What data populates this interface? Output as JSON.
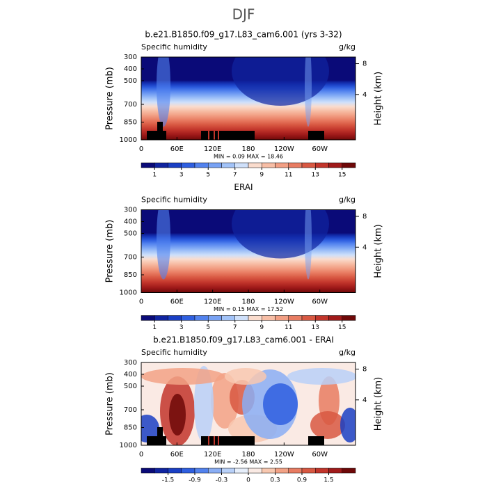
{
  "title": "DJF",
  "chart_data": [
    {
      "type": "contour",
      "title": "b.e21.B1850.f09_g17.L83_cam6.001 (yrs 3-32)",
      "variable": "Specific humidity",
      "units": "g/kg",
      "ylabel": "Pressure (mb)",
      "y2label": "Height (km)",
      "xlim": [
        0,
        360
      ],
      "xticks": [
        0,
        {
          "value": 60,
          "label": "60E"
        },
        {
          "value": 120,
          "label": "120E"
        },
        180,
        {
          "value": 240,
          "label": "120W"
        },
        {
          "value": 300,
          "label": "60W"
        }
      ],
      "ylim": [
        1000,
        300
      ],
      "yticks": [
        300,
        400,
        500,
        700,
        850,
        1000
      ],
      "y2ticks": [
        8,
        4
      ],
      "stats": "MIN =    0.09   MAX =   18.46",
      "land": true,
      "colorbar": {
        "colors": [
          "#0a0a78",
          "#1024a0",
          "#1a3fc4",
          "#2f5fe0",
          "#5282ee",
          "#78a2f4",
          "#a2c3f8",
          "#cfe0fa",
          "#fadccd",
          "#f7bea6",
          "#f29f84",
          "#e87c62",
          "#d85842",
          "#c2352b",
          "#a01a1a",
          "#6e0808"
        ],
        "levels": [
          1,
          2,
          3,
          4,
          5,
          6,
          7,
          8,
          9,
          10,
          11,
          12,
          13,
          14,
          15
        ],
        "ticks": [
          1,
          3,
          5,
          7,
          9,
          11,
          13,
          15
        ]
      }
    },
    {
      "type": "contour",
      "title": "ERAI",
      "variable": "Specific humidity",
      "units": "g/kg",
      "ylabel": "Pressure (mb)",
      "y2label": "Height (km)",
      "xlim": [
        0,
        360
      ],
      "xticks": [
        0,
        {
          "value": 60,
          "label": "60E"
        },
        {
          "value": 120,
          "label": "120E"
        },
        180,
        {
          "value": 240,
          "label": "120W"
        },
        {
          "value": 300,
          "label": "60W"
        }
      ],
      "ylim": [
        1000,
        300
      ],
      "yticks": [
        300,
        400,
        500,
        700,
        850,
        1000
      ],
      "y2ticks": [
        8,
        4
      ],
      "stats": "MIN =    0.15   MAX =   17.52",
      "land": false,
      "colorbar": {
        "colors": [
          "#0a0a78",
          "#1024a0",
          "#1a3fc4",
          "#2f5fe0",
          "#5282ee",
          "#78a2f4",
          "#a2c3f8",
          "#cfe0fa",
          "#fadccd",
          "#f7bea6",
          "#f29f84",
          "#e87c62",
          "#d85842",
          "#c2352b",
          "#a01a1a",
          "#6e0808"
        ],
        "levels": [
          1,
          2,
          3,
          4,
          5,
          6,
          7,
          8,
          9,
          10,
          11,
          12,
          13,
          14,
          15
        ],
        "ticks": [
          1,
          3,
          5,
          7,
          9,
          11,
          13,
          15
        ]
      }
    },
    {
      "type": "difference",
      "title": "b.e21.B1850.f09_g17.L83_cam6.001 - ERAI",
      "variable": "Specific humidity",
      "units": "g/kg",
      "ylabel": "Pressure (mb)",
      "y2label": "Height (km)",
      "xlim": [
        0,
        360
      ],
      "xticks": [
        0,
        {
          "value": 60,
          "label": "60E"
        },
        {
          "value": 120,
          "label": "120E"
        },
        180,
        {
          "value": 240,
          "label": "120W"
        },
        {
          "value": 300,
          "label": "60W"
        }
      ],
      "ylim": [
        1000,
        300
      ],
      "yticks": [
        300,
        400,
        500,
        700,
        850,
        1000
      ],
      "y2ticks": [
        8,
        4
      ],
      "stats": "MIN =  -2.56   MAX =    2.55",
      "land": true,
      "colorbar": {
        "colors": [
          "#0a0a78",
          "#1024a0",
          "#1a3fc4",
          "#2f5fe0",
          "#5282ee",
          "#8aaef4",
          "#b8d0f8",
          "#e6eefa",
          "#faeae4",
          "#f8c8b0",
          "#f2a286",
          "#e87c62",
          "#d85842",
          "#c2352b",
          "#a01a1a",
          "#6e0808"
        ],
        "levels": [
          -1.8,
          -1.5,
          -1.2,
          -0.9,
          -0.6,
          -0.3,
          -0.1,
          0,
          0.1,
          0.3,
          0.6,
          0.9,
          1.2,
          1.5,
          1.8
        ],
        "ticks": [
          -1.5,
          -0.9,
          -0.3,
          0,
          0.3,
          0.9,
          1.5
        ]
      }
    }
  ]
}
